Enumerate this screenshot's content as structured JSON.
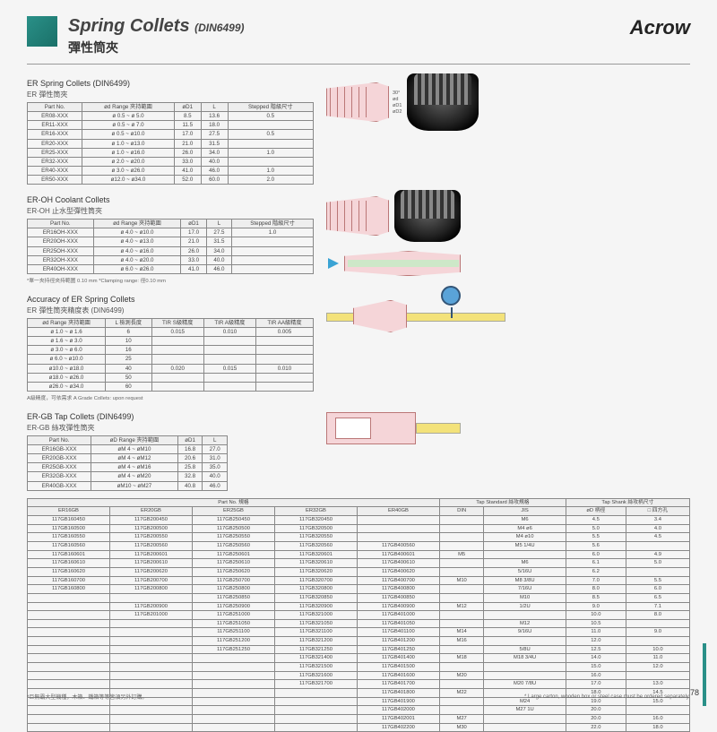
{
  "brand": "Acrow",
  "page_number": "78",
  "header": {
    "title_en": "Spring Collets",
    "title_code": "(DIN6499)",
    "title_zh": "彈性筒夾",
    "accent_color": "#2a9088"
  },
  "section1": {
    "title_en": "ER Spring Collets (DIN6499)",
    "title_zh": "ER 彈性筒夾",
    "columns": [
      "Part No.",
      "ød Range\n夾持範圍",
      "øD1",
      "L",
      "Stepped\n階級尺寸"
    ],
    "rows": [
      [
        "ER08-XXX",
        "ø 0.5 ~ ø 5.0",
        "8.5",
        "13.6",
        "0.5"
      ],
      [
        "ER11-XXX",
        "ø 0.5 ~ ø 7.0",
        "11.5",
        "18.0",
        ""
      ],
      [
        "ER16-XXX",
        "ø 0.5 ~ ø10.0",
        "17.0",
        "27.5",
        "0.5"
      ],
      [
        "ER20-XXX",
        "ø 1.0 ~ ø13.0",
        "21.0",
        "31.5",
        ""
      ],
      [
        "ER25-XXX",
        "ø 1.0 ~ ø16.0",
        "26.0",
        "34.0",
        "1.0"
      ],
      [
        "ER32-XXX",
        "ø 2.0 ~ ø20.0",
        "33.0",
        "40.0",
        ""
      ],
      [
        "ER40-XXX",
        "ø 3.0 ~ ø26.0",
        "41.0",
        "46.0",
        "1.0"
      ],
      [
        "ER50-XXX",
        "ø12.0 ~ ø34.0",
        "52.0",
        "60.0",
        "2.0"
      ]
    ],
    "dim_labels": [
      "ød",
      "øD1",
      "øD2",
      "L",
      "30°"
    ]
  },
  "section2": {
    "title_en": "ER-OH Coolant Collets",
    "title_zh": "ER-OH 止水型彈性筒夾",
    "columns": [
      "Part No.",
      "ød Range\n夾持範圍",
      "øD1",
      "L",
      "Stepped\n階級尺寸"
    ],
    "rows": [
      [
        "ER16OH-XXX",
        "ø 4.0 ~ ø10.0",
        "17.0",
        "27.5",
        "1.0"
      ],
      [
        "ER20OH-XXX",
        "ø 4.0 ~ ø13.0",
        "21.0",
        "31.5",
        ""
      ],
      [
        "ER25OH-XXX",
        "ø 4.0 ~ ø16.0",
        "26.0",
        "34.0",
        ""
      ],
      [
        "ER32OH-XXX",
        "ø 4.0 ~ ø20.0",
        "33.0",
        "40.0",
        ""
      ],
      [
        "ER40OH-XXX",
        "ø 6.0 ~ ø26.0",
        "41.0",
        "46.0",
        ""
      ]
    ],
    "note": "*單一夾持徑夾持範圍 0.10 mm\n*Clamping range: 徑0.10 mm"
  },
  "section3": {
    "title_en": "Accuracy of ER Spring Collets",
    "title_zh": "ER 彈性筒夾精度表 (DIN6499)",
    "columns": [
      "ød Range\n夾持範圍",
      "L\n檢測長度",
      "TIR\nS級精度",
      "TIR\nA級精度",
      "TIR\nAA級精度"
    ],
    "rows": [
      [
        "ø 1.0 ~ ø 1.6",
        "6",
        "0.015",
        "0.010",
        "0.005"
      ],
      [
        "ø 1.6 ~ ø 3.0",
        "10",
        "",
        "",
        ""
      ],
      [
        "ø 3.0 ~ ø 6.0",
        "16",
        "",
        "",
        ""
      ],
      [
        "ø 6.0 ~ ø10.0",
        "25",
        "",
        "",
        ""
      ],
      [
        "ø10.0 ~ ø18.0",
        "40",
        "0.020",
        "0.015",
        "0.010"
      ],
      [
        "ø18.0 ~ ø26.0",
        "50",
        "",
        "",
        ""
      ],
      [
        "ø26.0 ~ ø34.0",
        "60",
        "",
        "",
        ""
      ]
    ],
    "note": "A級精度，可依需求\nA Grade Collets: upon request"
  },
  "section4": {
    "title_en": "ER-GB  Tap Collets (DIN6499)",
    "title_zh": "ER-GB 絲攻彈性筒夾",
    "columns": [
      "Part No.",
      "øD Range\n夾持範圍",
      "øD1",
      "L"
    ],
    "rows": [
      [
        "ER16GB-XXX",
        "øM 4 ~ øM10",
        "16.8",
        "27.0"
      ],
      [
        "ER20GB-XXX",
        "øM 4 ~ øM12",
        "20.6",
        "31.0"
      ],
      [
        "ER25GB-XXX",
        "øM 4 ~ øM16",
        "25.8",
        "35.0"
      ],
      [
        "ER32GB-XXX",
        "øM 4 ~ øM20",
        "32.8",
        "40.0"
      ],
      [
        "ER40GB-XXX",
        "øM10 ~ øM27",
        "40.8",
        "46.0"
      ]
    ]
  },
  "big_table": {
    "header_groups": [
      "Part No. 規格",
      "Tap Standard\n絲攻規格",
      "Tap Shank\n絲攻柄尺寸"
    ],
    "header_cols": [
      "ER16GB",
      "ER20GB",
      "ER25GB",
      "ER32GB",
      "ER40GB",
      "DIN",
      "JIS",
      "øD\n柄徑",
      "□\n四方孔"
    ],
    "rows": [
      [
        "117GB160450",
        "117GB200450",
        "117GB250450",
        "117GB320450",
        "",
        "",
        "M6",
        "4.5",
        "3.4"
      ],
      [
        "117GB160500",
        "117GB200500",
        "117GB250500",
        "117GB320500",
        "",
        "",
        "M4  ø6",
        "5.0",
        "4.0"
      ],
      [
        "117GB160550",
        "117GB200550",
        "117GB250550",
        "117GB320550",
        "",
        "",
        "M4  ø10",
        "5.5",
        "4.5"
      ],
      [
        "117GB160560",
        "117GB200560",
        "117GB250560",
        "117GB320560",
        "117GB400560",
        "",
        "M5  1/4U",
        "5.6",
        ""
      ],
      [
        "117GB160601",
        "117GB200601",
        "117GB250601",
        "117GB320601",
        "117GB400601",
        "M5",
        "",
        "6.0",
        "4.9"
      ],
      [
        "117GB160610",
        "117GB200610",
        "117GB250610",
        "117GB320610",
        "117GB400610",
        "",
        "M6",
        "6.1",
        "5.0"
      ],
      [
        "117GB160620",
        "117GB200620",
        "117GB250620",
        "117GB320620",
        "117GB400620",
        "",
        "5/16U",
        "6.2",
        ""
      ],
      [
        "117GB160700",
        "117GB200700",
        "117GB250700",
        "117GB320700",
        "117GB400700",
        "M10",
        "M8  3/8U",
        "7.0",
        "5.5"
      ],
      [
        "117GB160800",
        "117GB200800",
        "117GB250800",
        "117GB320800",
        "117GB400800",
        "",
        "7/16U",
        "8.0",
        "6.0"
      ],
      [
        "",
        "",
        "117GB250850",
        "117GB320850",
        "117GB400850",
        "",
        "M10",
        "8.5",
        "6.5"
      ],
      [
        "",
        "117GB200900",
        "117GB250900",
        "117GB320900",
        "117GB400900",
        "M12",
        "1/2U",
        "9.0",
        "7.1"
      ],
      [
        "",
        "117GB201000",
        "117GB251000",
        "117GB321000",
        "117GB401000",
        "",
        "",
        "10.0",
        "8.0"
      ],
      [
        "",
        "",
        "117GB251050",
        "117GB321050",
        "117GB401050",
        "",
        "M12",
        "10.5",
        ""
      ],
      [
        "",
        "",
        "117GB251100",
        "117GB321100",
        "117GB401100",
        "M14",
        "9/16U",
        "11.0",
        "9.0"
      ],
      [
        "",
        "",
        "117GB251200",
        "117GB321200",
        "117GB401200",
        "M16",
        "",
        "12.0",
        ""
      ],
      [
        "",
        "",
        "117GB251250",
        "117GB321250",
        "117GB401250",
        "",
        "5/8U",
        "12.5",
        "10.0"
      ],
      [
        "",
        "",
        "",
        "117GB321400",
        "117GB401400",
        "M18",
        "M18  3/4U",
        "14.0",
        "11.0"
      ],
      [
        "",
        "",
        "",
        "117GB321500",
        "117GB401500",
        "",
        "",
        "15.0",
        "12.0"
      ],
      [
        "",
        "",
        "",
        "117GB321600",
        "117GB401600",
        "M20",
        "",
        "16.0",
        ""
      ],
      [
        "",
        "",
        "",
        "117GB321700",
        "117GB401700",
        "",
        "M20  7/8U",
        "17.0",
        "13.0"
      ],
      [
        "",
        "",
        "",
        "",
        "117GB401800",
        "M22",
        "",
        "18.0",
        "14.5"
      ],
      [
        "",
        "",
        "",
        "",
        "117GB401900",
        "",
        "M24",
        "19.0",
        "15.0"
      ],
      [
        "",
        "",
        "",
        "",
        "117GB402000",
        "",
        "M27  1U",
        "20.0",
        ""
      ],
      [
        "",
        "",
        "",
        "",
        "117GB402001",
        "M27",
        "",
        "20.0",
        "16.0"
      ],
      [
        "",
        "",
        "",
        "",
        "117GB402200",
        "M30",
        "",
        "22.0",
        "18.0"
      ]
    ]
  },
  "footer": {
    "left": "*巨無霸大型機種，木箱、鐵箱等等皆須另外訂購。",
    "right": "* Large carton, wooden box or steel case must be ordered separately."
  },
  "colors": {
    "diagram_pink": "#f5d5d8",
    "diagram_yellow": "#f3e27a",
    "diagram_blue": "#5aa3d8",
    "arrow_blue": "#3aa3d4"
  }
}
